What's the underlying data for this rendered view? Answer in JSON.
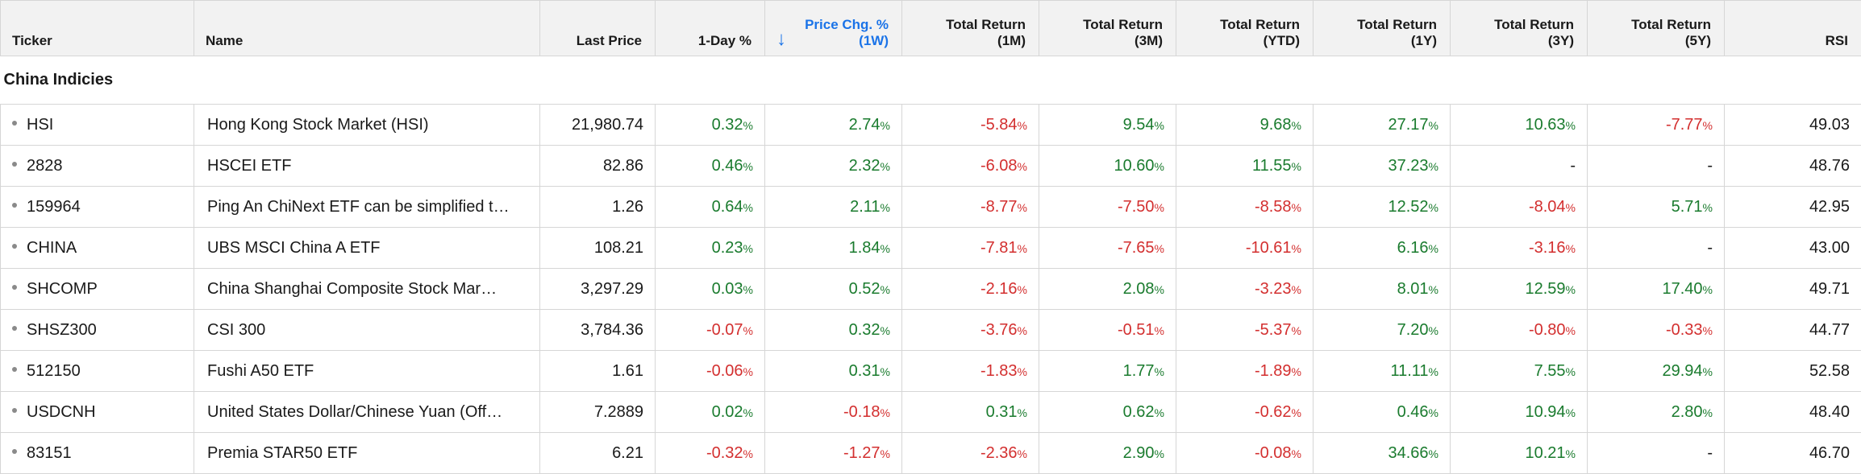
{
  "columns": [
    {
      "label1": "",
      "label2": "Ticker",
      "align": "left",
      "width": 240
    },
    {
      "label1": "",
      "label2": "Name",
      "align": "left",
      "width": 429
    },
    {
      "label1": "",
      "label2": "Last Price",
      "align": "right",
      "width": 143
    },
    {
      "label1": "",
      "label2": "1-Day %",
      "align": "right",
      "width": 136
    },
    {
      "label1": "Price Chg. %",
      "label2": "(1W)",
      "align": "right",
      "width": 170,
      "sorted": true
    },
    {
      "label1": "Total Return",
      "label2": "(1M)",
      "align": "right",
      "width": 170
    },
    {
      "label1": "Total Return",
      "label2": "(3M)",
      "align": "right",
      "width": 170
    },
    {
      "label1": "Total Return",
      "label2": "(YTD)",
      "align": "right",
      "width": 170
    },
    {
      "label1": "Total Return",
      "label2": "(1Y)",
      "align": "right",
      "width": 170
    },
    {
      "label1": "Total Return",
      "label2": "(3Y)",
      "align": "right",
      "width": 170
    },
    {
      "label1": "Total Return",
      "label2": "(5Y)",
      "align": "right",
      "width": 170
    },
    {
      "label1": "",
      "label2": "RSI",
      "align": "right",
      "width": 170
    }
  ],
  "sort_icon": "arrow-down-icon",
  "section_title": "China Indicies",
  "colors": {
    "positive": "#1a7b2e",
    "negative": "#d32f2f",
    "accent": "#1a73e8"
  },
  "rows": [
    {
      "ticker": "HSI",
      "name": "Hong Kong Stock Market (HSI)",
      "price": "21,980.74",
      "day": "0.32",
      "w1": "2.74",
      "m1": "-5.84",
      "m3": "9.54",
      "ytd": "9.68",
      "y1": "27.17",
      "y3": "10.63",
      "y5": "-7.77",
      "rsi": "49.03"
    },
    {
      "ticker": "2828",
      "name": "HSCEI ETF",
      "price": "82.86",
      "day": "0.46",
      "w1": "2.32",
      "m1": "-6.08",
      "m3": "10.60",
      "ytd": "11.55",
      "y1": "37.23",
      "y3": "-",
      "y5": "-",
      "rsi": "48.76"
    },
    {
      "ticker": "159964",
      "name": "Ping An ChiNext ETF can be simplified t…",
      "price": "1.26",
      "day": "0.64",
      "w1": "2.11",
      "m1": "-8.77",
      "m3": "-7.50",
      "ytd": "-8.58",
      "y1": "12.52",
      "y3": "-8.04",
      "y5": "5.71",
      "rsi": "42.95"
    },
    {
      "ticker": "CHINA",
      "name": "UBS MSCI China A ETF",
      "price": "108.21",
      "day": "0.23",
      "w1": "1.84",
      "m1": "-7.81",
      "m3": "-7.65",
      "ytd": "-10.61",
      "y1": "6.16",
      "y3": "-3.16",
      "y5": "-",
      "rsi": "43.00"
    },
    {
      "ticker": "SHCOMP",
      "name": "China Shanghai Composite Stock Mar…",
      "price": "3,297.29",
      "day": "0.03",
      "w1": "0.52",
      "m1": "-2.16",
      "m3": "2.08",
      "ytd": "-3.23",
      "y1": "8.01",
      "y3": "12.59",
      "y5": "17.40",
      "rsi": "49.71"
    },
    {
      "ticker": "SHSZ300",
      "name": "CSI 300",
      "price": "3,784.36",
      "day": "-0.07",
      "w1": "0.32",
      "m1": "-3.76",
      "m3": "-0.51",
      "ytd": "-5.37",
      "y1": "7.20",
      "y3": "-0.80",
      "y5": "-0.33",
      "rsi": "44.77"
    },
    {
      "ticker": "512150",
      "name": "Fushi A50 ETF",
      "price": "1.61",
      "day": "-0.06",
      "w1": "0.31",
      "m1": "-1.83",
      "m3": "1.77",
      "ytd": "-1.89",
      "y1": "11.11",
      "y3": "7.55",
      "y5": "29.94",
      "rsi": "52.58"
    },
    {
      "ticker": "USDCNH",
      "name": "United States Dollar/Chinese Yuan (Off…",
      "price": "7.2889",
      "day": "0.02",
      "w1": "-0.18",
      "m1": "0.31",
      "m3": "0.62",
      "ytd": "-0.62",
      "y1": "0.46",
      "y3": "10.94",
      "y5": "2.80",
      "rsi": "48.40"
    },
    {
      "ticker": "83151",
      "name": "Premia STAR50 ETF",
      "price": "6.21",
      "day": "-0.32",
      "w1": "-1.27",
      "m1": "-2.36",
      "m3": "2.90",
      "ytd": "-0.08",
      "y1": "34.66",
      "y3": "10.21",
      "y5": "-",
      "rsi": "46.70"
    }
  ]
}
